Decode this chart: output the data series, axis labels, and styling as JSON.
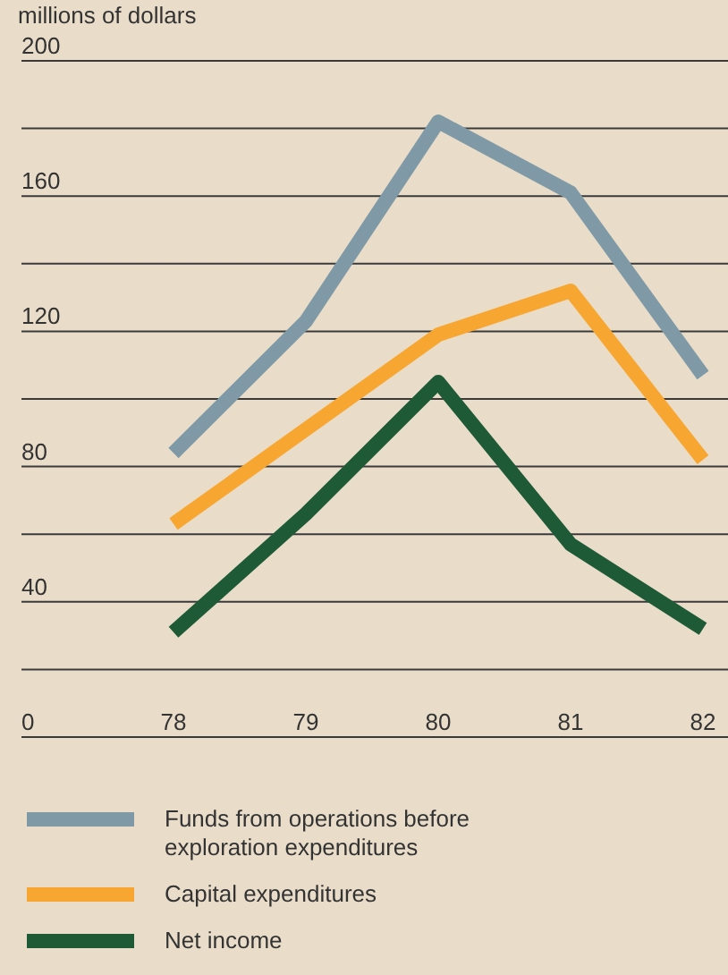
{
  "chart_data": {
    "type": "line",
    "ylabel": "millions of dollars",
    "categories": [
      "78",
      "79",
      "80",
      "81",
      "82"
    ],
    "ylim": [
      0,
      200
    ],
    "yticks": [
      0,
      {
        "value": 20,
        "label": null
      },
      40,
      {
        "value": 60,
        "label": null
      },
      80,
      {
        "value": 100,
        "label": null
      },
      120,
      {
        "value": 140,
        "label": null
      },
      160,
      {
        "value": 180,
        "label": null
      },
      200
    ],
    "grid": "y",
    "legend": "bottom",
    "marker": "none",
    "line_style": "solid",
    "series": [
      {
        "name": "Funds from operations before exploration expenditures",
        "color": "#7f9aa6",
        "values": [
          84,
          123,
          182,
          161,
          107
        ]
      },
      {
        "name": "Capital expenditures",
        "color": "#f7a731",
        "values": [
          63,
          91,
          119,
          132,
          82
        ]
      },
      {
        "name": "Net income",
        "color": "#1e5a36",
        "values": [
          31,
          66,
          105,
          57,
          32
        ]
      }
    ]
  }
}
